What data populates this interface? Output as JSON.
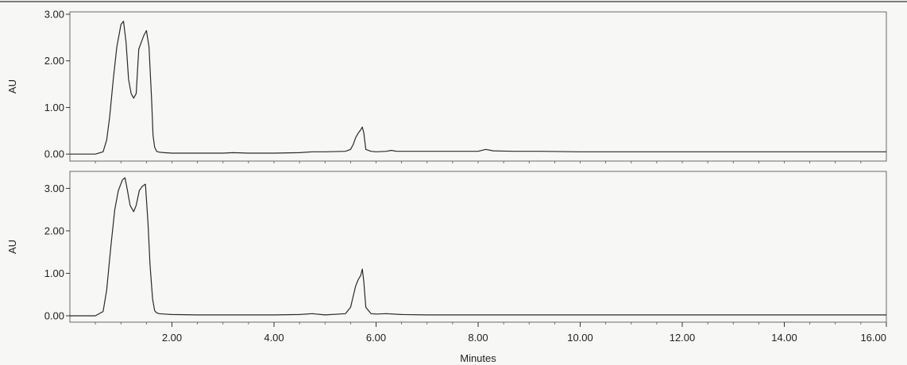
{
  "chart_data": [
    {
      "type": "line",
      "ylabel": "AU",
      "xlabel": "",
      "xlim": [
        0,
        16
      ],
      "ylim": [
        -0.15,
        3.05
      ],
      "grid": false,
      "yticks": [
        0,
        1,
        2,
        3
      ],
      "ytick_labels": [
        "0.00",
        "1.00",
        "2.00",
        "3.00"
      ],
      "xticks": [],
      "xtick_labels": [],
      "series": [
        {
          "x": [
            0,
            0.5,
            0.65,
            0.72,
            0.78,
            0.85,
            0.92,
            1.0,
            1.05,
            1.1,
            1.15,
            1.2,
            1.25,
            1.3,
            1.35,
            1.4,
            1.45,
            1.5,
            1.55,
            1.6,
            1.63,
            1.66,
            1.7,
            1.75,
            1.85,
            2.0,
            2.5,
            3.0,
            3.2,
            3.5,
            4.0,
            4.5,
            4.75,
            5.0,
            5.4,
            5.5,
            5.55,
            5.6,
            5.65,
            5.7,
            5.73,
            5.76,
            5.8,
            5.9,
            6.0,
            6.2,
            6.3,
            6.4,
            7.0,
            8.0,
            8.15,
            8.3,
            8.7,
            9.2,
            10.0,
            12.0,
            14.0,
            16.0
          ],
          "y": [
            0.0,
            0.0,
            0.05,
            0.3,
            0.8,
            1.6,
            2.3,
            2.78,
            2.85,
            2.4,
            1.6,
            1.3,
            1.2,
            1.3,
            2.25,
            2.4,
            2.55,
            2.65,
            2.3,
            1.2,
            0.4,
            0.15,
            0.06,
            0.04,
            0.03,
            0.02,
            0.02,
            0.02,
            0.03,
            0.02,
            0.02,
            0.03,
            0.05,
            0.05,
            0.06,
            0.1,
            0.2,
            0.35,
            0.45,
            0.52,
            0.58,
            0.45,
            0.1,
            0.06,
            0.05,
            0.06,
            0.08,
            0.06,
            0.06,
            0.06,
            0.1,
            0.07,
            0.06,
            0.06,
            0.05,
            0.05,
            0.05,
            0.05
          ]
        }
      ]
    },
    {
      "type": "line",
      "ylabel": "AU",
      "xlabel": "Minutes",
      "xlim": [
        0,
        16
      ],
      "ylim": [
        -0.15,
        3.4
      ],
      "grid": false,
      "yticks": [
        0,
        1,
        2,
        3
      ],
      "ytick_labels": [
        "0.00",
        "1.00",
        "2.00",
        "3.00"
      ],
      "xticks": [
        2,
        4,
        6,
        8,
        10,
        12,
        14,
        16
      ],
      "xtick_labels": [
        "2.00",
        "4.00",
        "6.00",
        "8.00",
        "10.00",
        "12.00",
        "14.00",
        "16.00"
      ],
      "series": [
        {
          "x": [
            0,
            0.5,
            0.65,
            0.72,
            0.8,
            0.88,
            0.95,
            1.03,
            1.08,
            1.12,
            1.18,
            1.25,
            1.3,
            1.36,
            1.42,
            1.48,
            1.53,
            1.57,
            1.62,
            1.66,
            1.7,
            1.75,
            1.85,
            2.0,
            2.5,
            3.0,
            4.0,
            4.5,
            4.75,
            5.0,
            5.4,
            5.5,
            5.55,
            5.6,
            5.65,
            5.7,
            5.73,
            5.76,
            5.8,
            5.9,
            6.0,
            6.2,
            6.5,
            7.0,
            8.0,
            9.2,
            10.0,
            12.0,
            14.0,
            16.0
          ],
          "y": [
            0.0,
            0.0,
            0.1,
            0.6,
            1.6,
            2.5,
            2.95,
            3.2,
            3.25,
            3.0,
            2.6,
            2.45,
            2.6,
            2.95,
            3.05,
            3.1,
            2.2,
            1.2,
            0.4,
            0.12,
            0.07,
            0.05,
            0.04,
            0.03,
            0.02,
            0.02,
            0.02,
            0.03,
            0.05,
            0.02,
            0.05,
            0.2,
            0.45,
            0.7,
            0.85,
            0.95,
            1.1,
            0.8,
            0.2,
            0.05,
            0.04,
            0.05,
            0.03,
            0.02,
            0.02,
            0.02,
            0.02,
            0.02,
            0.02,
            0.02
          ]
        }
      ]
    }
  ]
}
